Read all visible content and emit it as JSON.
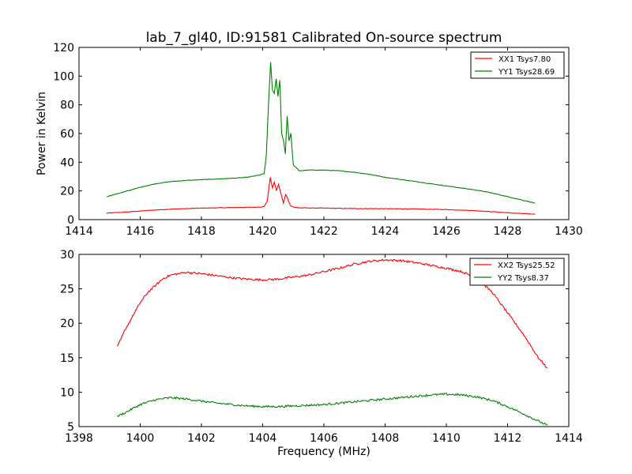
{
  "title": "lab_7_gl40, ID:91581 Calibrated On-source spectrum",
  "colors": {
    "red": "#ff0000",
    "green": "#008000"
  },
  "chart_data": [
    {
      "type": "line",
      "ylabel": "Power in Kelvin",
      "xlabel": "",
      "xlim": [
        1414,
        1430
      ],
      "ylim": [
        0,
        120
      ],
      "xticks": [
        "1414",
        "1416",
        "1418",
        "1420",
        "1422",
        "1424",
        "1426",
        "1428",
        "1430"
      ],
      "yticks": [
        "0",
        "20",
        "40",
        "60",
        "80",
        "100",
        "120"
      ],
      "legend_position": "top-right",
      "series": [
        {
          "name": "XX1 Tsys7.80",
          "color": "#ff0000",
          "x": [
            1414.9,
            1415.5,
            1416.0,
            1416.5,
            1417.0,
            1418.0,
            1419.0,
            1419.8,
            1420.05,
            1420.15,
            1420.25,
            1420.32,
            1420.38,
            1420.45,
            1420.52,
            1420.6,
            1420.68,
            1420.75,
            1420.82,
            1420.9,
            1421.0,
            1421.2,
            1422.0,
            1423.0,
            1424.0,
            1425.0,
            1426.0,
            1426.5,
            1427.0,
            1427.5,
            1428.0,
            1428.5,
            1428.9
          ],
          "y": [
            4.5,
            5.2,
            6.0,
            6.7,
            7.3,
            8.0,
            8.4,
            8.7,
            9.0,
            13.0,
            29.5,
            22.0,
            26.0,
            20.5,
            24.5,
            18.0,
            11.5,
            17.5,
            14.5,
            10.0,
            8.8,
            8.2,
            8.0,
            7.7,
            7.6,
            7.4,
            7.0,
            6.6,
            6.2,
            5.5,
            4.8,
            4.2,
            3.8
          ]
        },
        {
          "name": "YY1 Tsys28.69",
          "color": "#008000",
          "x": [
            1414.9,
            1415.5,
            1416.0,
            1416.5,
            1417.0,
            1417.5,
            1418.0,
            1418.5,
            1419.0,
            1419.5,
            1419.9,
            1420.05,
            1420.12,
            1420.2,
            1420.26,
            1420.32,
            1420.38,
            1420.44,
            1420.5,
            1420.56,
            1420.62,
            1420.68,
            1420.74,
            1420.8,
            1420.86,
            1420.92,
            1421.0,
            1421.2,
            1421.5,
            1422.0,
            1422.5,
            1423.0,
            1423.5,
            1424.0,
            1424.5,
            1425.0,
            1425.5,
            1426.0,
            1426.5,
            1427.0,
            1427.5,
            1428.0,
            1428.5,
            1428.9
          ],
          "y": [
            16.0,
            19.5,
            22.5,
            25.0,
            26.5,
            27.3,
            27.8,
            28.3,
            28.8,
            29.5,
            31.0,
            32.0,
            45.0,
            85.0,
            109.5,
            90.0,
            88.0,
            98.0,
            86.0,
            97.0,
            60.0,
            55.0,
            46.0,
            72.0,
            55.0,
            60.0,
            38.0,
            34.0,
            34.5,
            34.5,
            34.0,
            33.0,
            31.5,
            29.5,
            28.0,
            26.5,
            25.0,
            23.5,
            22.0,
            20.5,
            18.5,
            16.0,
            13.5,
            11.5
          ]
        }
      ]
    },
    {
      "type": "line",
      "ylabel": "",
      "xlabel": "Frequency (MHz)",
      "xlim": [
        1398,
        1414
      ],
      "ylim": [
        5,
        30
      ],
      "xticks": [
        "1398",
        "1400",
        "1402",
        "1404",
        "1406",
        "1408",
        "1410",
        "1412",
        "1414"
      ],
      "yticks": [
        "5",
        "10",
        "15",
        "20",
        "25",
        "30"
      ],
      "legend_position": "top-right",
      "series": [
        {
          "name": "XX2 Tsys25.52",
          "color": "#ff0000",
          "x": [
            1399.25,
            1399.5,
            1399.75,
            1400.0,
            1400.25,
            1400.5,
            1400.75,
            1401.0,
            1401.5,
            1402.0,
            1402.5,
            1403.0,
            1403.5,
            1404.0,
            1404.5,
            1405.0,
            1405.5,
            1406.0,
            1406.5,
            1407.0,
            1407.5,
            1408.0,
            1408.5,
            1409.0,
            1409.5,
            1410.0,
            1410.5,
            1411.0,
            1411.25,
            1411.5,
            1411.75,
            1412.0,
            1412.25,
            1412.5,
            1412.75,
            1413.0,
            1413.3
          ],
          "y": [
            16.5,
            19.0,
            21.0,
            23.0,
            24.5,
            25.5,
            26.5,
            27.0,
            27.4,
            27.2,
            26.9,
            26.6,
            26.4,
            26.3,
            26.4,
            26.7,
            27.0,
            27.5,
            28.0,
            28.6,
            29.0,
            29.2,
            29.1,
            28.8,
            28.4,
            28.0,
            27.5,
            26.5,
            25.5,
            24.5,
            23.0,
            21.5,
            20.0,
            18.5,
            16.8,
            15.0,
            13.5
          ]
        },
        {
          "name": "YY2 Tsys8.37",
          "color": "#008000",
          "x": [
            1399.25,
            1399.5,
            1399.75,
            1400.0,
            1400.5,
            1401.0,
            1401.5,
            1402.0,
            1402.5,
            1403.0,
            1403.5,
            1404.0,
            1404.5,
            1405.0,
            1405.5,
            1406.0,
            1406.5,
            1407.0,
            1407.5,
            1408.0,
            1408.5,
            1409.0,
            1409.5,
            1410.0,
            1410.5,
            1411.0,
            1411.5,
            1412.0,
            1412.5,
            1413.0,
            1413.3
          ],
          "y": [
            6.5,
            7.0,
            7.6,
            8.2,
            8.9,
            9.2,
            9.0,
            8.7,
            8.4,
            8.2,
            8.0,
            7.9,
            7.9,
            8.0,
            8.1,
            8.2,
            8.4,
            8.6,
            8.8,
            9.0,
            9.2,
            9.4,
            9.6,
            9.7,
            9.6,
            9.3,
            8.8,
            7.9,
            6.9,
            5.8,
            5.2
          ]
        }
      ]
    }
  ]
}
